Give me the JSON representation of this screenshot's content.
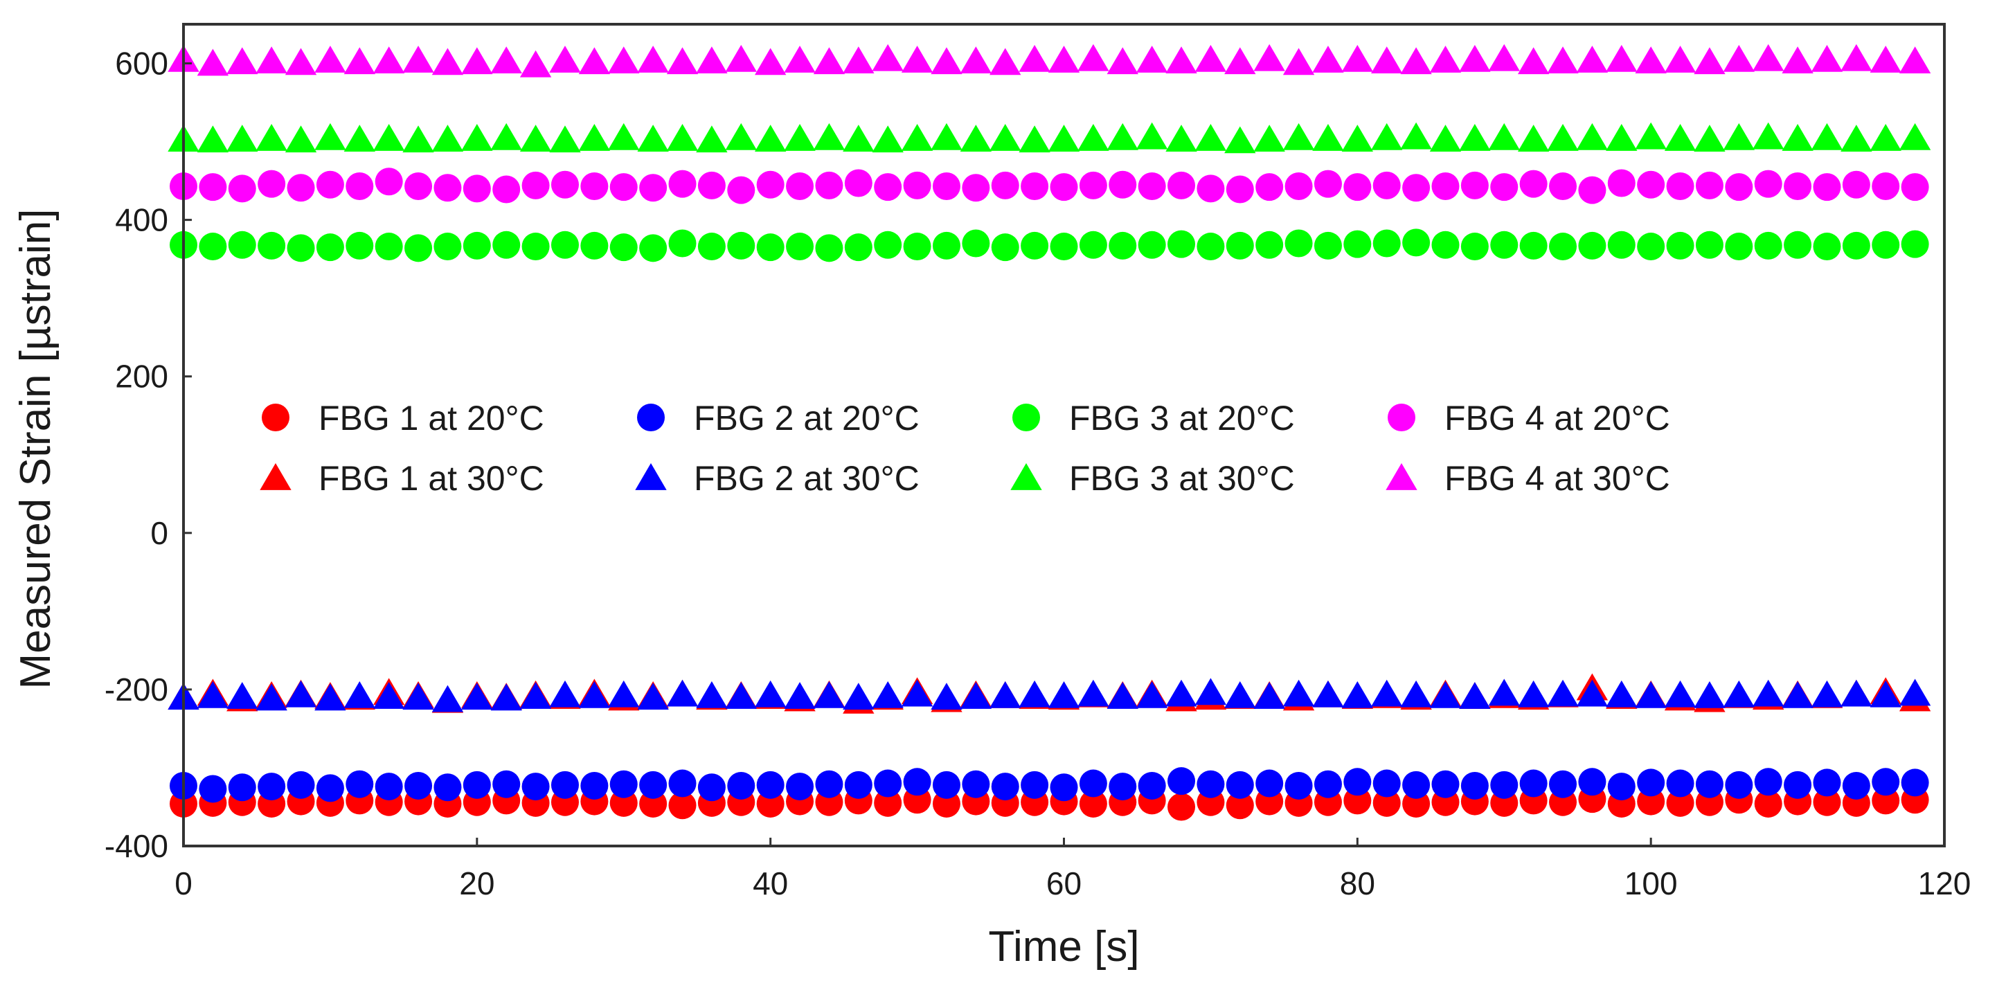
{
  "chart_data": {
    "type": "scatter",
    "title": "",
    "xlabel": "Time [s]",
    "ylabel": "Measured Strain [µstrain]",
    "xlim": [
      0,
      120
    ],
    "ylim": [
      -400,
      650
    ],
    "xticks": [
      0,
      20,
      40,
      60,
      80,
      100,
      120
    ],
    "yticks": [
      -400,
      -200,
      0,
      200,
      400,
      600
    ],
    "xtick_labels": [
      "0",
      "20",
      "40",
      "60",
      "80",
      "100",
      "120"
    ],
    "ytick_labels": [
      "-400",
      "-200",
      "0",
      "200",
      "400",
      "600"
    ],
    "grid": false,
    "legend_position": "center",
    "x": [
      0,
      2,
      4,
      6,
      8,
      10,
      12,
      14,
      16,
      18,
      20,
      22,
      24,
      26,
      28,
      30,
      32,
      34,
      36,
      38,
      40,
      42,
      44,
      46,
      48,
      50,
      52,
      54,
      56,
      58,
      60,
      62,
      64,
      66,
      68,
      70,
      72,
      74,
      76,
      78,
      80,
      82,
      84,
      86,
      88,
      90,
      92,
      94,
      96,
      98,
      100,
      102,
      104,
      106,
      108,
      110,
      112,
      114,
      116,
      118
    ],
    "series": [
      {
        "name": "FBG 1 at 20°C",
        "marker": "circle",
        "color": "#ff0000",
        "values": [
          -346,
          -345,
          -344,
          -346,
          -343,
          -345,
          -342,
          -344,
          -343,
          -346,
          -344,
          -342,
          -345,
          -344,
          -343,
          -345,
          -346,
          -348,
          -345,
          -344,
          -346,
          -343,
          -344,
          -342,
          -345,
          -341,
          -346,
          -343,
          -345,
          -344,
          -343,
          -346,
          -344,
          -342,
          -350,
          -344,
          -348,
          -343,
          -345,
          -344,
          -342,
          -345,
          -346,
          -344,
          -343,
          -345,
          -342,
          -344,
          -340,
          -346,
          -343,
          -345,
          -344,
          -341,
          -346,
          -343,
          -344,
          -345,
          -342,
          -341
        ]
      },
      {
        "name": "FBG 1 at 30°C",
        "marker": "triangle",
        "color": "#ff0000",
        "values": [
          -210,
          -205,
          -212,
          -208,
          -206,
          -209,
          -210,
          -204,
          -208,
          -214,
          -208,
          -210,
          -207,
          -209,
          -205,
          -211,
          -208,
          -206,
          -210,
          -208,
          -209,
          -212,
          -207,
          -215,
          -210,
          -203,
          -213,
          -207,
          -208,
          -209,
          -210,
          -207,
          -208,
          -206,
          -212,
          -210,
          -209,
          -208,
          -211,
          -207,
          -209,
          -208,
          -210,
          -206,
          -209,
          -208,
          -210,
          -207,
          -198,
          -209,
          -207,
          -211,
          -213,
          -208,
          -210,
          -207,
          -208,
          -206,
          -203,
          -212
        ]
      },
      {
        "name": "FBG 2 at 20°C",
        "marker": "circle",
        "color": "#0000ff",
        "values": [
          -323,
          -327,
          -325,
          -324,
          -322,
          -326,
          -321,
          -324,
          -323,
          -325,
          -322,
          -321,
          -324,
          -322,
          -323,
          -321,
          -322,
          -320,
          -325,
          -323,
          -322,
          -324,
          -321,
          -322,
          -320,
          -318,
          -322,
          -321,
          -324,
          -322,
          -325,
          -320,
          -324,
          -323,
          -317,
          -321,
          -322,
          -320,
          -323,
          -321,
          -318,
          -320,
          -322,
          -321,
          -323,
          -322,
          -320,
          -321,
          -318,
          -324,
          -319,
          -320,
          -321,
          -322,
          -318,
          -322,
          -319,
          -323,
          -318,
          -319
        ]
      },
      {
        "name": "FBG 2 at 30°C",
        "marker": "triangle",
        "color": "#0000ff",
        "values": [
          -210,
          -208,
          -209,
          -211,
          -207,
          -211,
          -208,
          -209,
          -210,
          -213,
          -210,
          -211,
          -209,
          -207,
          -208,
          -207,
          -210,
          -206,
          -208,
          -209,
          -207,
          -209,
          -208,
          -210,
          -208,
          -206,
          -210,
          -209,
          -208,
          -207,
          -208,
          -206,
          -209,
          -208,
          -206,
          -204,
          -208,
          -209,
          -206,
          -207,
          -208,
          -206,
          -207,
          -208,
          -209,
          -205,
          -207,
          -206,
          -206,
          -207,
          -208,
          -207,
          -208,
          -207,
          -206,
          -208,
          -207,
          -206,
          -207,
          -205
        ]
      },
      {
        "name": "FBG 3 at 20°C",
        "marker": "circle",
        "color": "#00ff00",
        "values": [
          368,
          366,
          368,
          367,
          364,
          365,
          367,
          366,
          364,
          366,
          367,
          368,
          366,
          368,
          367,
          365,
          364,
          370,
          366,
          367,
          365,
          366,
          364,
          365,
          368,
          366,
          367,
          370,
          365,
          367,
          366,
          368,
          367,
          368,
          369,
          366,
          367,
          368,
          370,
          367,
          369,
          370,
          371,
          368,
          366,
          368,
          367,
          366,
          367,
          368,
          366,
          367,
          368,
          366,
          367,
          368,
          366,
          367,
          368,
          369
        ]
      },
      {
        "name": "FBG 3 at 30°C",
        "marker": "triangle",
        "color": "#00ff00",
        "values": [
          503,
          502,
          503,
          504,
          502,
          505,
          503,
          504,
          502,
          503,
          504,
          505,
          503,
          502,
          504,
          505,
          503,
          504,
          502,
          505,
          503,
          504,
          505,
          503,
          502,
          504,
          505,
          503,
          504,
          502,
          503,
          504,
          505,
          506,
          503,
          504,
          501,
          503,
          505,
          504,
          503,
          505,
          506,
          503,
          504,
          505,
          503,
          504,
          505,
          504,
          506,
          504,
          503,
          505,
          506,
          504,
          505,
          503,
          504,
          505
        ]
      },
      {
        "name": "FBG 4 at 20°C",
        "marker": "circle",
        "color": "#ff00ff",
        "values": [
          443,
          442,
          440,
          446,
          441,
          445,
          443,
          449,
          443,
          441,
          440,
          439,
          444,
          445,
          443,
          442,
          441,
          446,
          444,
          438,
          445,
          443,
          444,
          447,
          442,
          444,
          443,
          441,
          444,
          443,
          442,
          444,
          445,
          443,
          444,
          440,
          439,
          442,
          443,
          446,
          442,
          444,
          441,
          443,
          444,
          442,
          446,
          443,
          438,
          447,
          445,
          443,
          444,
          442,
          446,
          443,
          442,
          445,
          443,
          442
        ]
      },
      {
        "name": "FBG 4 at 30°C",
        "marker": "triangle",
        "color": "#ff00ff",
        "values": [
          605,
          600,
          602,
          603,
          601,
          604,
          602,
          603,
          604,
          601,
          602,
          603,
          598,
          604,
          602,
          603,
          604,
          602,
          603,
          605,
          601,
          604,
          602,
          603,
          606,
          604,
          602,
          603,
          601,
          605,
          604,
          606,
          602,
          604,
          603,
          605,
          602,
          606,
          601,
          604,
          605,
          603,
          602,
          604,
          605,
          606,
          602,
          603,
          604,
          605,
          603,
          604,
          602,
          605,
          606,
          603,
          605,
          606,
          604,
          603
        ]
      }
    ]
  }
}
